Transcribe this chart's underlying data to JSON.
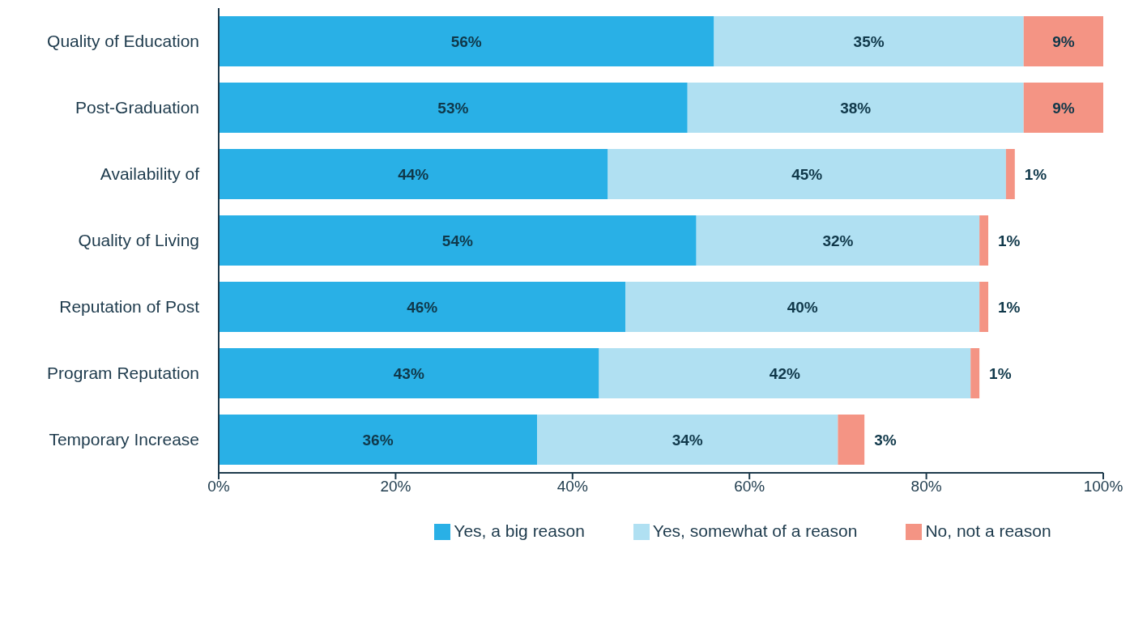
{
  "chart_data": {
    "type": "bar",
    "orientation": "horizontal",
    "stacked": true,
    "categories": [
      "Quality of Education",
      "Post-Graduation",
      "Availability of",
      "Quality of Living",
      "Reputation of Post",
      "Program Reputation",
      "Temporary Increase"
    ],
    "series": [
      {
        "name": "Yes, a big reason",
        "color": "#29b0e6",
        "values": [
          56,
          53,
          44,
          54,
          46,
          43,
          36
        ],
        "value_labels": [
          "56%",
          "53%",
          "44%",
          "54%",
          "46%",
          "43%",
          "36%"
        ]
      },
      {
        "name": "Yes, somewhat of a reason",
        "color": "#b0e0f2",
        "values": [
          35,
          38,
          45,
          32,
          40,
          42,
          34
        ],
        "value_labels": [
          "35%",
          "38%",
          "45%",
          "32%",
          "40%",
          "42%",
          "34%"
        ]
      },
      {
        "name": "No, not a reason",
        "color": "#f49484",
        "values": [
          9,
          9,
          1,
          1,
          1,
          1,
          3
        ],
        "value_labels": [
          "9%",
          "9%",
          "1%",
          "1%",
          "1%",
          "1%",
          "3%"
        ]
      }
    ],
    "xlim": [
      0,
      100
    ],
    "xticks": [
      {
        "value": 0,
        "label": "0%"
      },
      {
        "value": 20,
        "label": "20%"
      },
      {
        "value": 40,
        "label": "40%"
      },
      {
        "value": 60,
        "label": "60%"
      },
      {
        "value": 80,
        "label": "80%"
      },
      {
        "value": 100,
        "label": "100%"
      }
    ],
    "grid": false,
    "legend": "bottom"
  }
}
